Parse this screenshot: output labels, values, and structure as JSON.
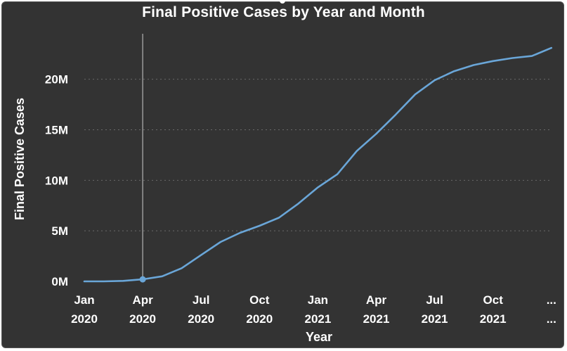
{
  "chart_data": {
    "type": "line",
    "title": "Final Positive Cases by Year and Month",
    "xlabel": "Year",
    "ylabel": "Final Positive Cases",
    "y_ticks": [
      {
        "value": 0,
        "label": "0M"
      },
      {
        "value": 5000000,
        "label": "5M"
      },
      {
        "value": 10000000,
        "label": "10M"
      },
      {
        "value": 15000000,
        "label": "15M"
      },
      {
        "value": 20000000,
        "label": "20M"
      }
    ],
    "ylim": [
      0,
      24500000
    ],
    "x_ticks": [
      {
        "month": "Jan",
        "year": "2020"
      },
      {
        "month": "Apr",
        "year": "2020"
      },
      {
        "month": "Jul",
        "year": "2020"
      },
      {
        "month": "Oct",
        "year": "2020"
      },
      {
        "month": "Jan",
        "year": "2021"
      },
      {
        "month": "Apr",
        "year": "2021"
      },
      {
        "month": "Jul",
        "year": "2021"
      },
      {
        "month": "Oct",
        "year": "2021"
      },
      {
        "month": "...",
        "year": "..."
      }
    ],
    "x": [
      "2020-01",
      "2020-02",
      "2020-03",
      "2020-04",
      "2020-05",
      "2020-06",
      "2020-07",
      "2020-08",
      "2020-09",
      "2020-10",
      "2020-11",
      "2020-12",
      "2021-01",
      "2021-02",
      "2021-03",
      "2021-04",
      "2021-05",
      "2021-06",
      "2021-07",
      "2021-08",
      "2021-09",
      "2021-10",
      "2021-11",
      "2021-12",
      "2022-01"
    ],
    "series": [
      {
        "values": [
          0,
          0,
          50000,
          200000,
          500000,
          1300000,
          2600000,
          3900000,
          4800000,
          5500000,
          6300000,
          7700000,
          9300000,
          10600000,
          12900000,
          14600000,
          16500000,
          18500000,
          19900000,
          20800000,
          21400000,
          21800000,
          22100000,
          22300000,
          23100000
        ],
        "color": "#6aa6d8"
      }
    ],
    "highlight": {
      "x": "2020-04"
    },
    "grid": true,
    "gridline_style": "dotted"
  }
}
